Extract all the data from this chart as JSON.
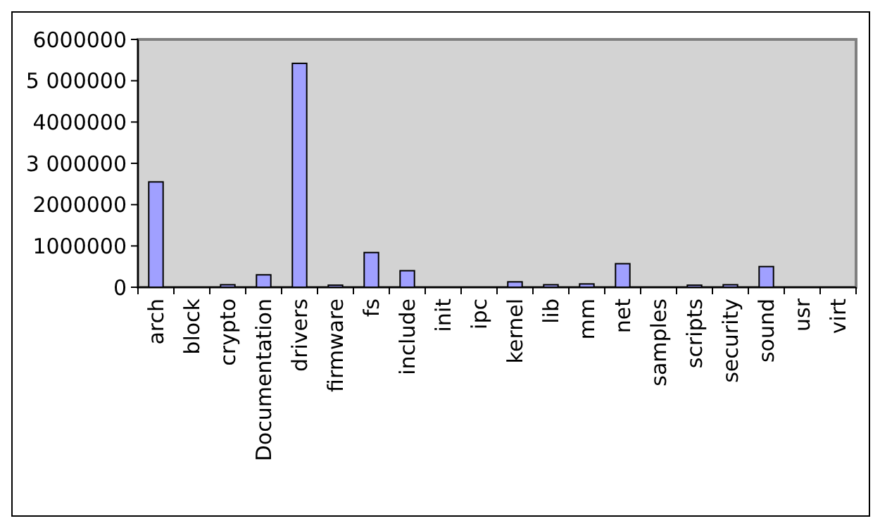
{
  "chart_data": {
    "type": "bar",
    "categories": [
      "arch",
      "block",
      "crypto",
      "Documentation",
      "drivers",
      "firmware",
      "fs",
      "include",
      "init",
      "ipc",
      "kernel",
      "lib",
      "mm",
      "net",
      "samples",
      "scripts",
      "security",
      "sound",
      "usr",
      "virt"
    ],
    "values": [
      2550000,
      null,
      60000,
      300000,
      5420000,
      50000,
      840000,
      400000,
      null,
      null,
      130000,
      60000,
      80000,
      570000,
      null,
      50000,
      60000,
      500000,
      null,
      null
    ],
    "color": "#a0a0ff",
    "ylim": [
      0,
      6000000
    ],
    "yticks": [
      0,
      1000000,
      2000000,
      {
        "value": 3000000,
        "label": "3 000000"
      },
      4000000,
      {
        "value": 5000000,
        "label": "5 000000"
      },
      6000000
    ],
    "grid": false
  }
}
